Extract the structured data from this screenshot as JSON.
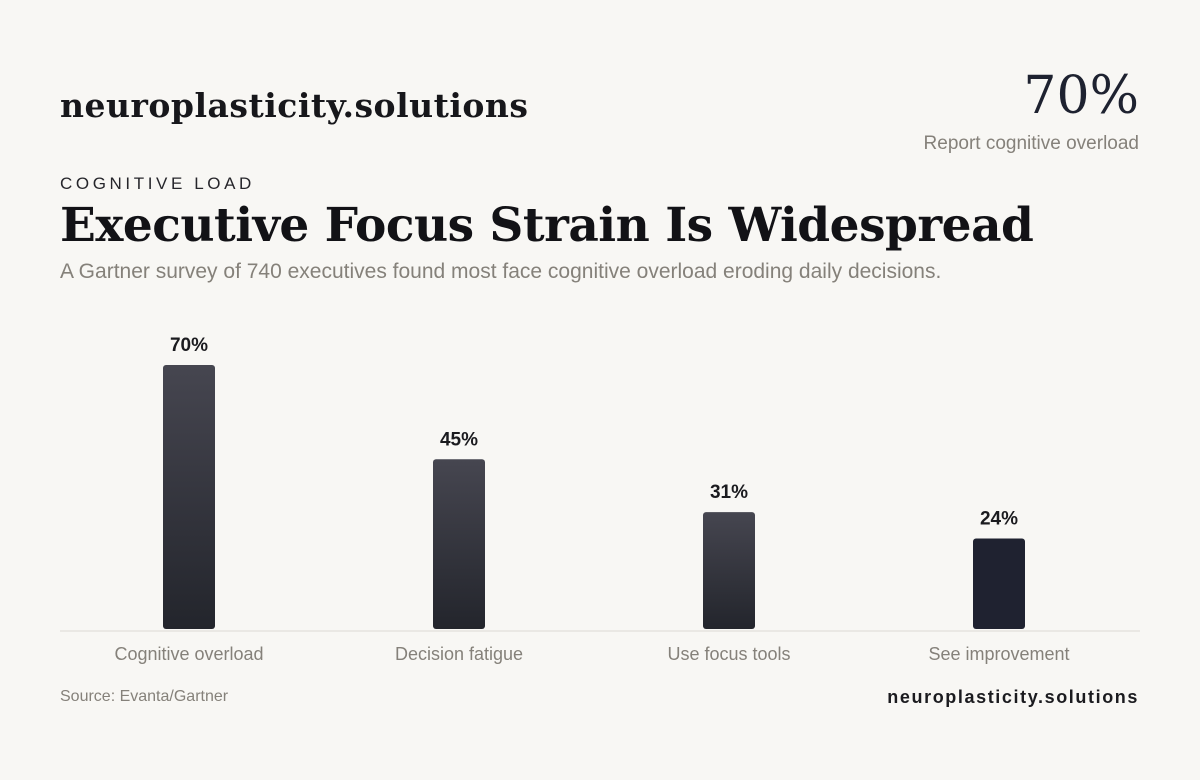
{
  "header": {
    "brand": "neuroplasticity.solutions",
    "kpi_value": "70%",
    "kpi_label": "Report cognitive overload"
  },
  "eyebrow": "COGNITIVE LOAD",
  "title": "Executive Focus Strain Is Widespread",
  "subtitle": "A Gartner survey of 740 executives found most face cognitive overload eroding daily decisions.",
  "footer": {
    "source": "Source: Evanta/Gartner",
    "brand": "neuroplasticity.solutions"
  },
  "colors": {
    "background": "#f8f7f4",
    "bar_top": "#464650",
    "bar_bottom": "#23252c",
    "bar_highlight": "#1f2230",
    "axis": "#dcdad5",
    "muted_text": "#85817a"
  },
  "chart_data": {
    "type": "bar",
    "categories": [
      "Cognitive overload",
      "Decision fatigue",
      "Use focus tools",
      "See improvement"
    ],
    "values": [
      70,
      45,
      31,
      24
    ],
    "value_labels": [
      "70%",
      "45%",
      "31%",
      "24%"
    ],
    "unit": "%",
    "title": "",
    "xlabel": "",
    "ylabel": "",
    "ylim": [
      0,
      70
    ],
    "grid": false,
    "legend": "none"
  }
}
